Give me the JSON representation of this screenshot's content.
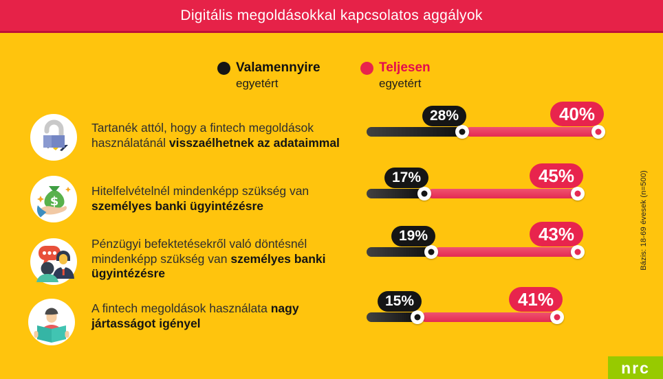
{
  "header": {
    "title": "Digitális megoldásokkal kapcsolatos aggályok"
  },
  "legend": {
    "items": [
      {
        "emphasis": "Valamennyire",
        "rest": "egyetért",
        "dot_color": "#151515",
        "text_color": "#111111"
      },
      {
        "emphasis": "Teljesen",
        "rest": "egyetért",
        "dot_color": "#E8244D",
        "text_color": "#E30B4E"
      }
    ]
  },
  "chart_data": {
    "type": "bar",
    "orientation": "horizontal-stacked",
    "unit": "%",
    "title": "Digitális megoldásokkal kapcsolatos aggályok",
    "legend_position": "top",
    "xlim": [
      0,
      70
    ],
    "series": [
      {
        "name": "Valamennyire egyetért",
        "color": "#151515"
      },
      {
        "name": "Teljesen egyetért",
        "color": "#E8244D"
      }
    ],
    "rows": [
      {
        "icon": "open-padlock-icon",
        "text": "Tartanék attól, hogy a fintech megoldások használatánál ",
        "text_bold": "visszaélhetnek az adataimmal",
        "somewhat_pct": 28,
        "fully_pct": 40
      },
      {
        "icon": "money-bag-hand-icon",
        "text": "Hitelfelvételnél mindenképp szükség van ",
        "text_bold": "személyes banki ügyintézésre",
        "somewhat_pct": 17,
        "fully_pct": 45
      },
      {
        "icon": "conversation-icon",
        "text": "Pénzügyi befektetésekről való döntésnél mindenképp szükség van ",
        "text_bold": "személyes banki ügyintézésre",
        "somewhat_pct": 19,
        "fully_pct": 43
      },
      {
        "icon": "reading-person-icon",
        "text": "A fintech megoldások használata ",
        "text_bold": "nagy jártasságot igényel",
        "somewhat_pct": 15,
        "fully_pct": 41
      }
    ]
  },
  "source": {
    "basis": "Bázis: 18-69 évesek (n=500)"
  },
  "logo": {
    "text": "nrc"
  },
  "colors": {
    "background": "#FFC40D",
    "header_red": "#E62248",
    "header_border": "#BD1038",
    "bar_black": "#151515",
    "bar_red": "#E8244D",
    "logo_green": "#97CA00"
  }
}
